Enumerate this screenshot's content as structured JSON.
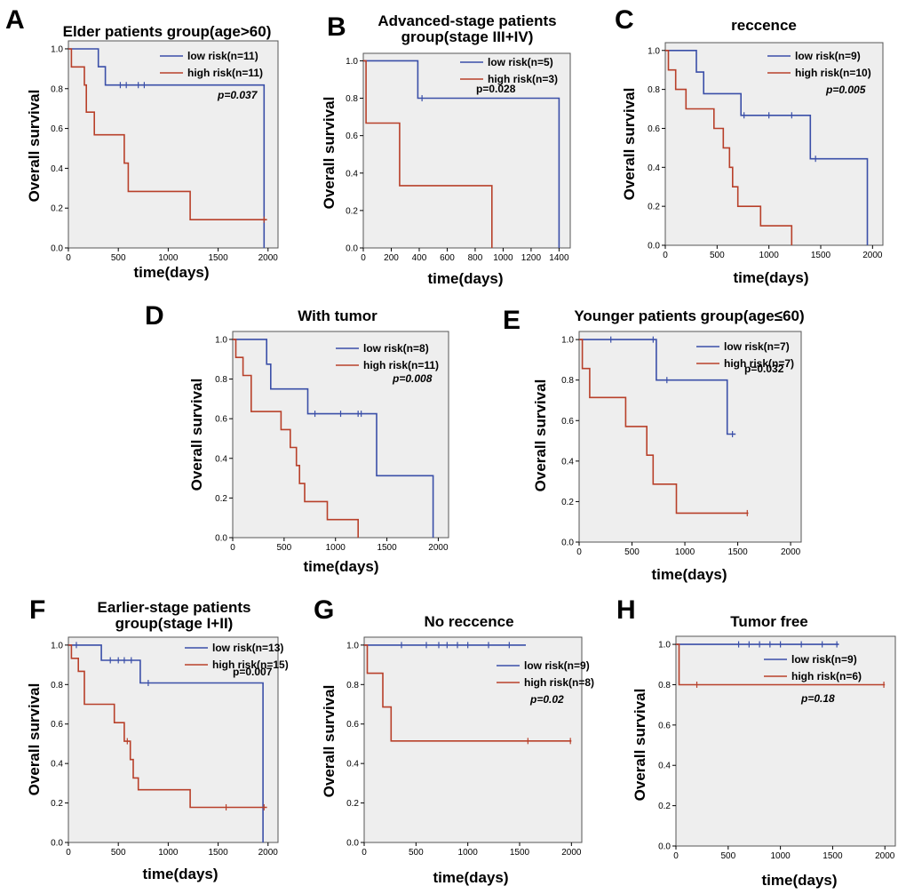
{
  "figure": {
    "colors": {
      "low": "#3a4fa8",
      "high": "#b8402a",
      "plot_bg": "#eeeeee",
      "frame": "#555555"
    }
  },
  "chart_data": [
    {
      "id": "A",
      "letter": "A",
      "type": "line",
      "title": [
        "Elder patients group(age>60)"
      ],
      "xlabel": "time(days)",
      "ylabel": "Overall survival",
      "xlim": [
        0,
        2100
      ],
      "ylim": [
        0,
        1.04
      ],
      "xticks": [
        0,
        500,
        1000,
        1500,
        2000
      ],
      "xtick_labels": [
        "0",
        "500",
        "1000",
        "1500",
        "2000"
      ],
      "yticks": [
        0,
        0.2,
        0.4,
        0.6,
        0.8,
        1.0
      ],
      "ytick_labels": [
        "0.0",
        "0.2",
        "0.4",
        "0.6",
        "0.8",
        "1.0"
      ],
      "pvalue": "p=0.037",
      "p_italic": true,
      "series": [
        {
          "name": "low risk(n=11)",
          "color_key": "low",
          "steps": [
            [
              0,
              1.0
            ],
            [
              300,
              0.91
            ],
            [
              370,
              0.818
            ],
            [
              1960,
              0
            ]
          ],
          "censors": [
            [
              520,
              0.818
            ],
            [
              580,
              0.818
            ],
            [
              700,
              0.818
            ],
            [
              760,
              0.818
            ]
          ]
        },
        {
          "name": "high risk(n=11)",
          "color_key": "high",
          "steps": [
            [
              0,
              1.0
            ],
            [
              30,
              0.909
            ],
            [
              160,
              0.818
            ],
            [
              180,
              0.682
            ],
            [
              260,
              0.568
            ],
            [
              540,
              0.568
            ],
            [
              560,
              0.426
            ],
            [
              600,
              0.284
            ],
            [
              1220,
              0.142
            ]
          ],
          "end_x": 1990,
          "censors": [
            [
              1960,
              0.142
            ]
          ]
        }
      ]
    },
    {
      "id": "B",
      "letter": "B",
      "type": "line",
      "title": [
        "Advanced-stage patients",
        "group(stage III+IV)"
      ],
      "xlabel": "time(days)",
      "ylabel": "Overall survival",
      "xlim": [
        0,
        1480
      ],
      "ylim": [
        0,
        1.04
      ],
      "xticks": [
        0,
        200,
        400,
        600,
        800,
        1000,
        1200,
        1400
      ],
      "xtick_labels": [
        "0",
        "200",
        "400",
        "600",
        "800",
        "1000",
        "1200",
        "1400"
      ],
      "yticks": [
        0,
        0.2,
        0.4,
        0.6,
        0.8,
        1.0
      ],
      "ytick_labels": [
        "0.0",
        "0.2",
        "0.4",
        "0.6",
        "0.8",
        "1.0"
      ],
      "pvalue": "p=0.028",
      "p_italic": false,
      "series": [
        {
          "name": "low risk(n=5)",
          "color_key": "low",
          "steps": [
            [
              0,
              1.0
            ],
            [
              390,
              0.8
            ],
            [
              1400,
              0
            ]
          ],
          "censors": [
            [
              420,
              0.8
            ]
          ]
        },
        {
          "name": "high risk(n=3)",
          "color_key": "high",
          "steps": [
            [
              0,
              1.0
            ],
            [
              20,
              0.667
            ],
            [
              260,
              0.333
            ],
            [
              920,
              0
            ]
          ],
          "censors": []
        }
      ]
    },
    {
      "id": "C",
      "letter": "C",
      "type": "line",
      "title": [
        "reccence"
      ],
      "xlabel": "time(days)",
      "ylabel": "Overall survival",
      "xlim": [
        0,
        2100
      ],
      "ylim": [
        0,
        1.04
      ],
      "xticks": [
        0,
        500,
        1000,
        1500,
        2000
      ],
      "xtick_labels": [
        "0",
        "500",
        "1000",
        "1500",
        "2000"
      ],
      "yticks": [
        0,
        0.2,
        0.4,
        0.6,
        0.8,
        1.0
      ],
      "ytick_labels": [
        "0.0",
        "0.2",
        "0.4",
        "0.6",
        "0.8",
        "1.0"
      ],
      "pvalue": "p=0.005",
      "p_italic": true,
      "series": [
        {
          "name": "low risk(n=9)",
          "color_key": "low",
          "steps": [
            [
              0,
              1.0
            ],
            [
              300,
              0.889
            ],
            [
              370,
              0.778
            ],
            [
              730,
              0.667
            ],
            [
              1400,
              0.444
            ],
            [
              1950,
              0
            ]
          ],
          "censors": [
            [
              760,
              0.667
            ],
            [
              1000,
              0.667
            ],
            [
              1220,
              0.667
            ],
            [
              1450,
              0.444
            ]
          ]
        },
        {
          "name": "high risk(n=10)",
          "color_key": "high",
          "steps": [
            [
              0,
              1.0
            ],
            [
              30,
              0.9
            ],
            [
              100,
              0.8
            ],
            [
              200,
              0.7
            ],
            [
              470,
              0.6
            ],
            [
              560,
              0.5
            ],
            [
              620,
              0.4
            ],
            [
              650,
              0.3
            ],
            [
              700,
              0.2
            ],
            [
              920,
              0.1
            ],
            [
              1220,
              0
            ]
          ],
          "censors": []
        }
      ]
    },
    {
      "id": "D",
      "letter": "D",
      "type": "line",
      "title": [
        "With tumor"
      ],
      "xlabel": "time(days)",
      "ylabel": "Overall survival",
      "xlim": [
        0,
        2100
      ],
      "ylim": [
        0,
        1.04
      ],
      "xticks": [
        0,
        500,
        1000,
        1500,
        2000
      ],
      "xtick_labels": [
        "0",
        "500",
        "1000",
        "1500",
        "2000"
      ],
      "yticks": [
        0,
        0.2,
        0.4,
        0.6,
        0.8,
        1.0
      ],
      "ytick_labels": [
        "0.0",
        "0.2",
        "0.4",
        "0.6",
        "0.8",
        "1.0"
      ],
      "pvalue": "p=0.008",
      "p_italic": true,
      "series": [
        {
          "name": "low risk(n=8)",
          "color_key": "low",
          "steps": [
            [
              0,
              1.0
            ],
            [
              330,
              0.875
            ],
            [
              370,
              0.75
            ],
            [
              730,
              0.625
            ],
            [
              1400,
              0.3125
            ],
            [
              1950,
              0
            ]
          ],
          "censors": [
            [
              800,
              0.625
            ],
            [
              1050,
              0.625
            ],
            [
              1220,
              0.625
            ],
            [
              1250,
              0.625
            ]
          ]
        },
        {
          "name": "high risk(n=11)",
          "color_key": "high",
          "steps": [
            [
              0,
              1.0
            ],
            [
              30,
              0.909
            ],
            [
              100,
              0.818
            ],
            [
              180,
              0.636
            ],
            [
              470,
              0.545
            ],
            [
              560,
              0.455
            ],
            [
              620,
              0.364
            ],
            [
              650,
              0.273
            ],
            [
              700,
              0.182
            ],
            [
              920,
              0.091
            ],
            [
              1220,
              0
            ]
          ],
          "censors": []
        }
      ]
    },
    {
      "id": "E",
      "letter": "E",
      "type": "line",
      "title": [
        "Younger patients group(age≤60)"
      ],
      "xlabel": "time(days)",
      "ylabel": "Overall survival",
      "xlim": [
        0,
        2100
      ],
      "ylim": [
        0,
        1.04
      ],
      "xticks": [
        0,
        500,
        1000,
        1500,
        2000
      ],
      "xtick_labels": [
        "0",
        "500",
        "1000",
        "1500",
        "2000"
      ],
      "yticks": [
        0,
        0.2,
        0.4,
        0.6,
        0.8,
        1.0
      ],
      "ytick_labels": [
        "0.0",
        "0.2",
        "0.4",
        "0.6",
        "0.8",
        "1.0"
      ],
      "pvalue": "p=0.032",
      "p_italic": false,
      "series": [
        {
          "name": "low risk(n=7)",
          "color_key": "low",
          "steps": [
            [
              0,
              1.0
            ],
            [
              730,
              0.8
            ],
            [
              1400,
              0.533
            ]
          ],
          "end_x": 1480,
          "censors": [
            [
              300,
              1.0
            ],
            [
              700,
              1.0
            ],
            [
              830,
              0.8
            ],
            [
              1450,
              0.533
            ]
          ]
        },
        {
          "name": "high risk(n=7)",
          "color_key": "high",
          "steps": [
            [
              0,
              1.0
            ],
            [
              30,
              0.857
            ],
            [
              100,
              0.714
            ],
            [
              440,
              0.571
            ],
            [
              640,
              0.429
            ],
            [
              700,
              0.286
            ],
            [
              920,
              0.143
            ]
          ],
          "end_x": 1600,
          "censors": [
            [
              1590,
              0.143
            ]
          ]
        }
      ]
    },
    {
      "id": "F",
      "letter": "F",
      "type": "line",
      "title": [
        "Earlier-stage patients",
        "group(stage I+II)"
      ],
      "xlabel": "time(days)",
      "ylabel": "Overall survival",
      "xlim": [
        0,
        2100
      ],
      "ylim": [
        0,
        1.04
      ],
      "xticks": [
        0,
        500,
        1000,
        1500,
        2000
      ],
      "xtick_labels": [
        "0",
        "500",
        "1000",
        "1500",
        "2000"
      ],
      "yticks": [
        0,
        0.2,
        0.4,
        0.6,
        0.8,
        1.0
      ],
      "ytick_labels": [
        "0.0",
        "0.2",
        "0.4",
        "0.6",
        "0.8",
        "1.0"
      ],
      "pvalue": "p=0.007",
      "p_italic": false,
      "series": [
        {
          "name": "low risk(n=13)",
          "color_key": "low",
          "steps": [
            [
              0,
              1.0
            ],
            [
              330,
              0.923
            ],
            [
              720,
              0.808
            ],
            [
              1950,
              0
            ]
          ],
          "censors": [
            [
              80,
              1.0
            ],
            [
              420,
              0.923
            ],
            [
              500,
              0.923
            ],
            [
              560,
              0.923
            ],
            [
              630,
              0.923
            ],
            [
              800,
              0.808
            ]
          ]
        },
        {
          "name": "high risk(n=15)",
          "color_key": "high",
          "steps": [
            [
              0,
              1.0
            ],
            [
              30,
              0.933
            ],
            [
              100,
              0.867
            ],
            [
              160,
              0.7
            ],
            [
              460,
              0.607
            ],
            [
              560,
              0.513
            ],
            [
              620,
              0.42
            ],
            [
              650,
              0.327
            ],
            [
              700,
              0.267
            ],
            [
              1220,
              0.178
            ]
          ],
          "end_x": 1990,
          "censors": [
            [
              590,
              0.513
            ],
            [
              1580,
              0.178
            ],
            [
              1960,
              0.178
            ]
          ]
        }
      ]
    },
    {
      "id": "G",
      "letter": "G",
      "type": "line",
      "title": [
        "No reccence"
      ],
      "xlabel": "time(days)",
      "ylabel": "Overall survival",
      "xlim": [
        0,
        2100
      ],
      "ylim": [
        0,
        1.04
      ],
      "xticks": [
        0,
        500,
        1000,
        1500,
        2000
      ],
      "xtick_labels": [
        "0",
        "500",
        "1000",
        "1500",
        "2000"
      ],
      "yticks": [
        0,
        0.2,
        0.4,
        0.6,
        0.8,
        1.0
      ],
      "ytick_labels": [
        "0.0",
        "0.2",
        "0.4",
        "0.6",
        "0.8",
        "1.0"
      ],
      "pvalue": "p=0.02",
      "p_italic": true,
      "series": [
        {
          "name": "low risk(n=9)",
          "color_key": "low",
          "steps": [
            [
              0,
              1.0
            ]
          ],
          "end_x": 1560,
          "censors": [
            [
              360,
              1.0
            ],
            [
              600,
              1.0
            ],
            [
              720,
              1.0
            ],
            [
              800,
              1.0
            ],
            [
              900,
              1.0
            ],
            [
              1000,
              1.0
            ],
            [
              1200,
              1.0
            ],
            [
              1400,
              1.0
            ]
          ]
        },
        {
          "name": "high risk(n=8)",
          "color_key": "high",
          "steps": [
            [
              0,
              1.0
            ],
            [
              30,
              0.857
            ],
            [
              180,
              0.686
            ],
            [
              260,
              0.514
            ]
          ],
          "end_x": 2000,
          "censors": [
            [
              1580,
              0.514
            ],
            [
              1990,
              0.514
            ]
          ]
        }
      ]
    },
    {
      "id": "H",
      "letter": "H",
      "type": "line",
      "title": [
        "Tumor free"
      ],
      "xlabel": "time(days)",
      "ylabel": "Overall survival",
      "xlim": [
        0,
        2100
      ],
      "ylim": [
        0,
        1.04
      ],
      "xticks": [
        0,
        500,
        1000,
        1500,
        2000
      ],
      "xtick_labels": [
        "0",
        "500",
        "1000",
        "1500",
        "2000"
      ],
      "yticks": [
        0,
        0.2,
        0.4,
        0.6,
        0.8,
        1.0
      ],
      "ytick_labels": [
        "0.0",
        "0.2",
        "0.4",
        "0.6",
        "0.8",
        "1.0"
      ],
      "pvalue": "p=0.18",
      "p_italic": true,
      "series": [
        {
          "name": "low risk(n=9)",
          "color_key": "low",
          "steps": [
            [
              0,
              1.0
            ]
          ],
          "end_x": 1560,
          "censors": [
            [
              600,
              1.0
            ],
            [
              700,
              1.0
            ],
            [
              800,
              1.0
            ],
            [
              900,
              1.0
            ],
            [
              1000,
              1.0
            ],
            [
              1200,
              1.0
            ],
            [
              1400,
              1.0
            ],
            [
              1540,
              1.0
            ]
          ]
        },
        {
          "name": "high risk(n=6)",
          "color_key": "high",
          "steps": [
            [
              0,
              1.0
            ],
            [
              30,
              0.8
            ]
          ],
          "end_x": 2000,
          "censors": [
            [
              200,
              0.8
            ],
            [
              1990,
              0.8
            ]
          ]
        }
      ]
    }
  ]
}
